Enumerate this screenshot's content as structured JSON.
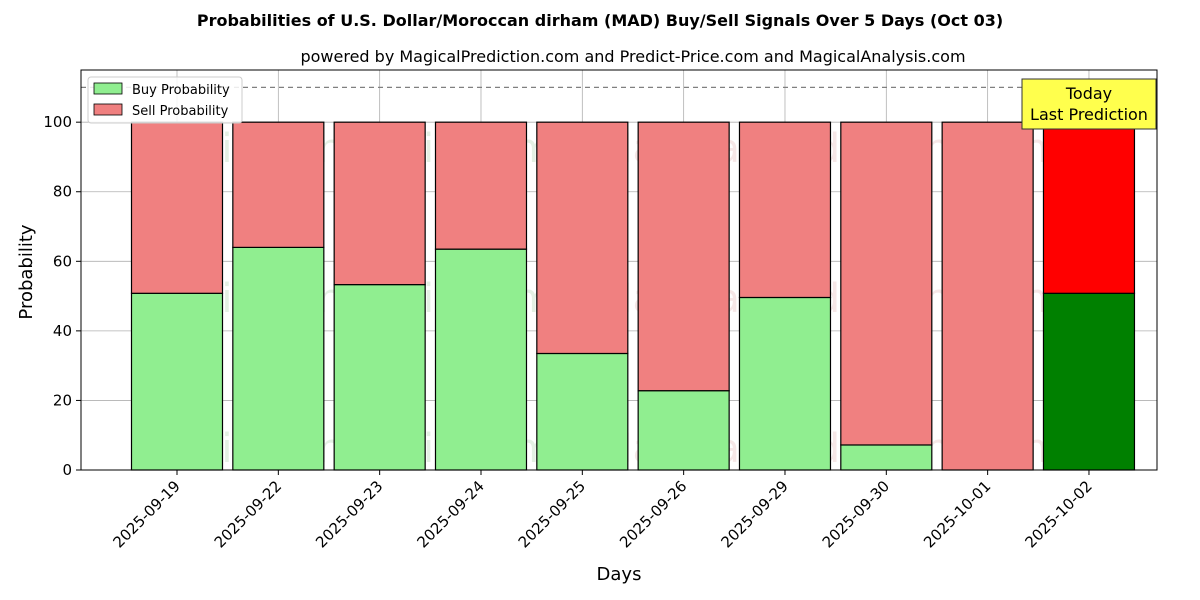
{
  "chart_data": {
    "type": "bar",
    "stacked": true,
    "title": "Probabilities of U.S. Dollar/Moroccan dirham (MAD) Buy/Sell Signals Over 5 Days (Oct 03)",
    "subtitle": "powered by MagicalPrediction.com and Predict-Price.com and MagicalAnalysis.com",
    "xlabel": "Days",
    "ylabel": "Probability",
    "ylim": [
      0,
      115
    ],
    "yticks": [
      0,
      20,
      40,
      60,
      80,
      100
    ],
    "grid": true,
    "legend_position": "top-left",
    "reference_line": 110,
    "categories": [
      "2025-09-19",
      "2025-09-22",
      "2025-09-23",
      "2025-09-24",
      "2025-09-25",
      "2025-09-26",
      "2025-09-29",
      "2025-09-30",
      "2025-10-01",
      "2025-10-02"
    ],
    "series": [
      {
        "name": "Buy Probability",
        "color": "#90ee90",
        "highlight_color": "#008000",
        "values": [
          50.8,
          64.0,
          53.3,
          63.5,
          33.5,
          22.8,
          49.6,
          7.2,
          0.0,
          50.8
        ]
      },
      {
        "name": "Sell Probability",
        "color": "#f08080",
        "highlight_color": "#ff0000",
        "values": [
          49.2,
          36.0,
          46.7,
          36.5,
          66.5,
          77.2,
          50.4,
          92.8,
          100.0,
          49.2
        ]
      }
    ],
    "highlight_index": 9,
    "annotation": {
      "line1": "Today",
      "line2": "Last Prediction",
      "color": "#ffff4d"
    },
    "watermarks": [
      "MagicalAnalysis.com",
      "MagicalPrediction.com"
    ]
  }
}
